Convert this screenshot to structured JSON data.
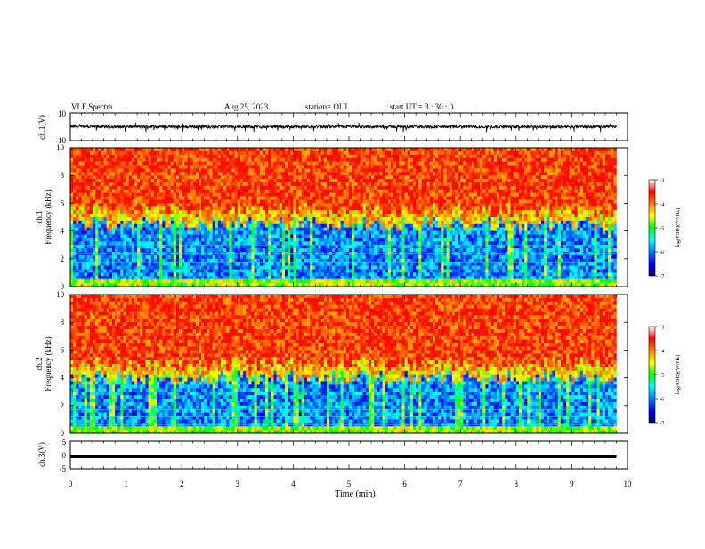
{
  "header": {
    "title": "VLF  Spectra",
    "date": "Aug.25, 2023",
    "station": "station= OUI",
    "start": "start  UT =   3  : 30 : 0"
  },
  "chart_data": [
    {
      "type": "line",
      "title": "",
      "ylabel": "ch.1(V)",
      "ylim": [
        -10,
        10
      ],
      "yticks": [
        "10",
        "-10"
      ],
      "description_values": {
        "baseline": 0,
        "typical_amplitude": 1,
        "spike_range": [
          -4,
          3
        ]
      },
      "grid": false
    },
    {
      "type": "heatmap",
      "ylabel": "ch.1\nFrequency  (kHz)",
      "ylim": [
        0,
        10
      ],
      "yticks": [
        "0",
        "2",
        "4",
        "6",
        "8",
        "10"
      ],
      "colorbar": {
        "label": "log(PSD)(V²/Hz)",
        "range": [
          -7,
          -3
        ],
        "ticks": [
          "-3",
          "-4",
          "-5",
          "-6",
          "-7"
        ]
      },
      "noise_floor_khz": [
        5.0,
        4.0
      ]
    },
    {
      "type": "heatmap",
      "ylabel": "ch.2\nFrequency  (kHz)",
      "ylim": [
        0,
        10
      ],
      "yticks": [
        "0",
        "2",
        "4",
        "6",
        "8",
        "10"
      ],
      "colorbar": {
        "label": "log(PSD)(V²/Hz)",
        "range": [
          -7,
          -3
        ],
        "ticks": [
          "-3",
          "-4",
          "-5",
          "-6",
          "-7"
        ]
      },
      "noise_floor_khz": [
        4.5,
        3.5
      ]
    },
    {
      "type": "line",
      "ylabel": "ch.3(V)",
      "ylim": [
        -5,
        5
      ],
      "yticks": [
        "5",
        "0",
        "-5"
      ],
      "series": [
        {
          "x": [
            0,
            9.8
          ],
          "y": [
            -0.5,
            -0.5
          ]
        }
      ]
    }
  ],
  "xaxis": {
    "label": "Time  (min)",
    "xlim": [
      0,
      10
    ],
    "ticks": [
      "0",
      "1",
      "2",
      "3",
      "4",
      "5",
      "6",
      "7",
      "8",
      "9",
      "10"
    ],
    "data_end": 9.8
  }
}
